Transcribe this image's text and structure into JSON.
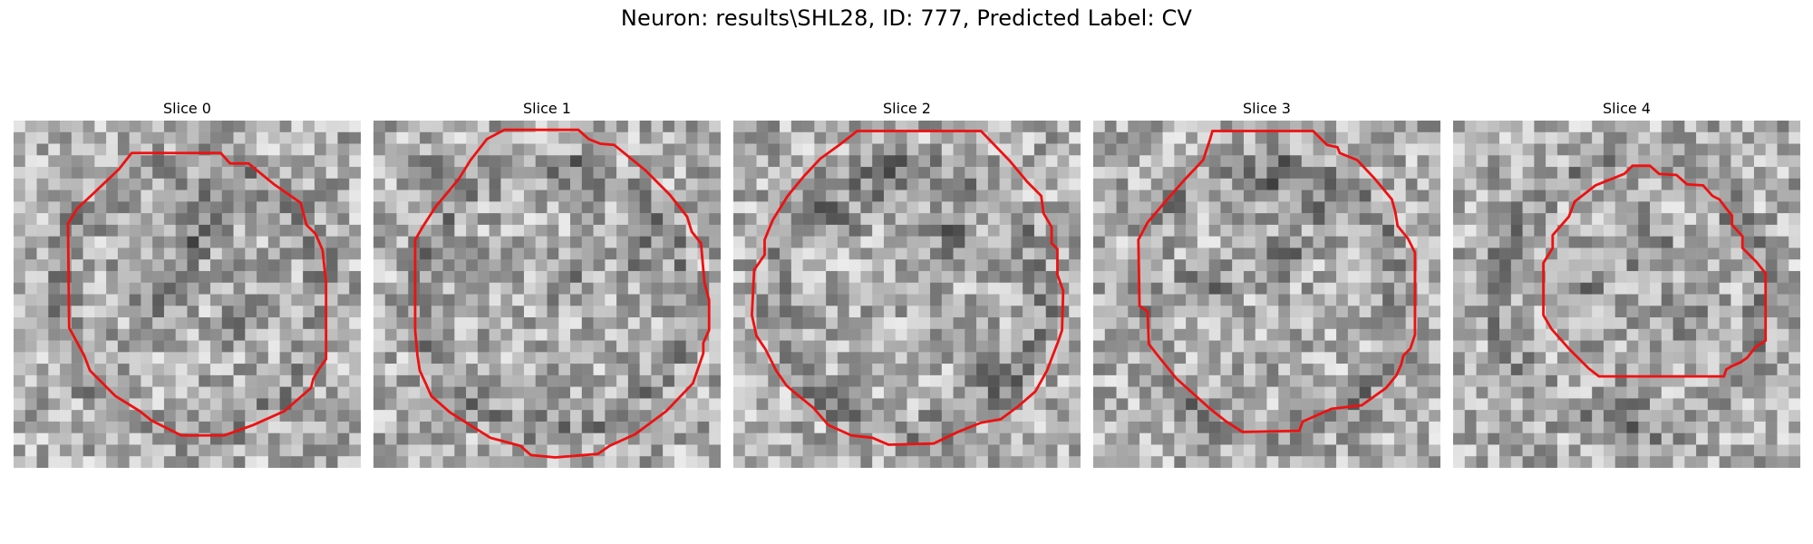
{
  "figure_title": "Neuron: results\\SHL28, ID: 777, Predicted Label: CV",
  "contour_color": "#ee1111",
  "slices": [
    {
      "title": "Slice 0"
    },
    {
      "title": "Slice 1"
    },
    {
      "title": "Slice 2"
    },
    {
      "title": "Slice 3"
    },
    {
      "title": "Slice 4"
    }
  ]
}
